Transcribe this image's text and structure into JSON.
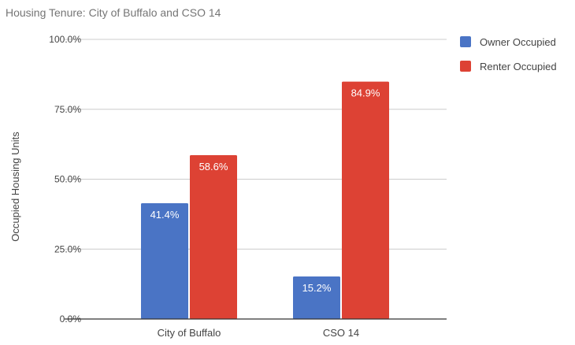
{
  "chart_data": {
    "type": "bar",
    "title": "Housing Tenure: City of Buffalo and CSO 14",
    "xlabel": "",
    "ylabel": "Occupied Housing Units",
    "categories": [
      "City of Buffalo",
      "CSO 14"
    ],
    "series": [
      {
        "name": "Owner Occupied",
        "color": "#4a74c5",
        "values": [
          41.4,
          15.2
        ],
        "labels": [
          "41.4%",
          "15.2%"
        ]
      },
      {
        "name": "Renter Occupied",
        "color": "#dd4234",
        "values": [
          58.6,
          84.9
        ],
        "labels": [
          "58.6%",
          "84.9%"
        ]
      }
    ],
    "ylim": [
      0,
      100
    ],
    "yticks": [
      0,
      25,
      50,
      75,
      100
    ],
    "ytick_labels": [
      "0.0%",
      "25.0%",
      "50.0%",
      "75.0%",
      "100.0%"
    ],
    "grid": true,
    "legend_position": "right"
  }
}
